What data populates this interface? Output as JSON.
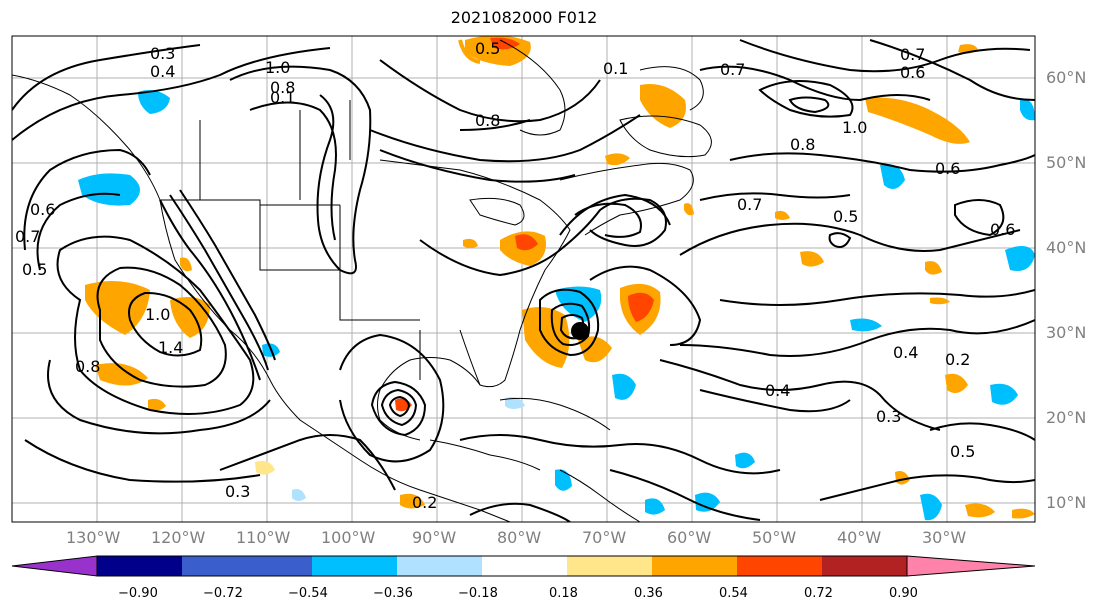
{
  "title": "2021082000 F012",
  "lon_labels": [
    "130°W",
    "120°W",
    "110°W",
    "100°W",
    "90°W",
    "80°W",
    "70°W",
    "60°W",
    "50°W",
    "40°W",
    "30°W"
  ],
  "lat_labels": [
    "60°N",
    "50°N",
    "40°N",
    "30°N",
    "20°N",
    "10°N"
  ],
  "colorbar": {
    "ticks": [
      "−0.90",
      "−0.72",
      "−0.54",
      "−0.36",
      "−0.18",
      "0.18",
      "0.36",
      "0.54",
      "0.72",
      "0.90"
    ],
    "colors": [
      "#9932cc",
      "#00008b",
      "#3a5fcd",
      "#00bfff",
      "#b0e2ff",
      "#ffffff",
      "#ffe68a",
      "#ffa500",
      "#ff4500",
      "#b22222",
      "#ff82ab"
    ]
  },
  "contour_labels": [
    "0.3",
    "0.4",
    "0.5",
    "0.6",
    "0.7",
    "0.8",
    "1.0",
    "1.4",
    "0.2",
    "0.1",
    "0.5",
    "0.6",
    "0.7",
    "0.8",
    "1.0",
    "0.6",
    "0.5",
    "0.7",
    "0.4",
    "0.3",
    "0.2",
    "0.8",
    "0.6",
    "0.4",
    "0.3",
    "0.5",
    "1.0",
    "0.8",
    "0.1",
    "0.7"
  ]
}
